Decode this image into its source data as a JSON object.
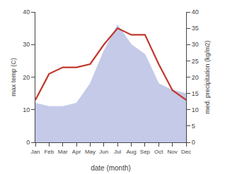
{
  "chart_data": {
    "type": "line",
    "categories": [
      "Jan",
      "Feb",
      "Mar",
      "Apr",
      "May",
      "Jun",
      "Jul",
      "Aug",
      "Sep",
      "Oct",
      "Nov",
      "Dec"
    ],
    "series": [
      {
        "type": "area",
        "color": "#c5cae9",
        "axis": "y2",
        "values": [
          12,
          11,
          11,
          12,
          18,
          28,
          36,
          30,
          27,
          18,
          16,
          15
        ]
      },
      {
        "type": "line",
        "color": "#c0392b",
        "values": [
          13,
          21,
          23,
          23,
          24,
          30,
          35,
          33,
          33,
          24,
          16,
          13
        ]
      }
    ],
    "xlabel": "date (month)",
    "ylabel": "max temp (C)",
    "y2label": "med. precipitation (kg/m2)",
    "ylim": [
      0,
      40
    ],
    "yticks": [
      0,
      10,
      20,
      30,
      40
    ],
    "y2lim": [
      0,
      40
    ],
    "y2ticks": [
      0,
      5,
      10,
      15,
      20,
      25,
      30,
      35,
      40
    ],
    "grid": false
  }
}
